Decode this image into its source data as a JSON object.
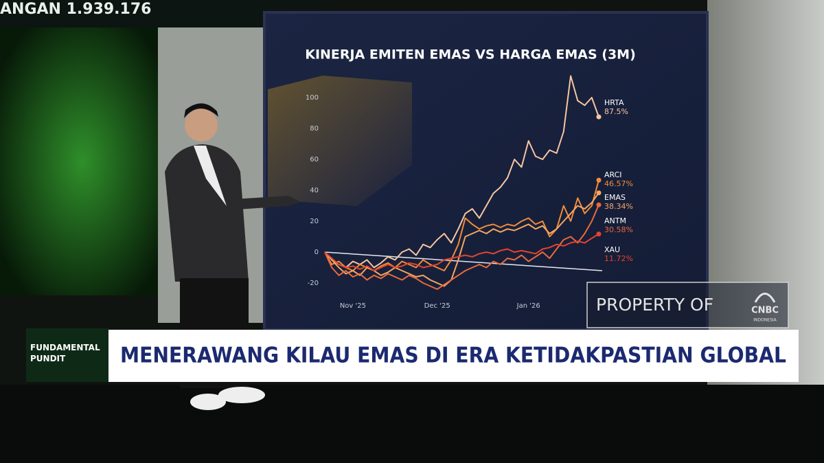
{
  "ticker": "ANGAN 1.939.176",
  "chart_data": {
    "type": "line",
    "title": "KINERJA EMITEN EMAS VS HARGA EMAS (3M)",
    "categories": [
      null,
      null,
      null,
      null,
      "Nov '25",
      null,
      null,
      null,
      null,
      null,
      null,
      null,
      null,
      null,
      null,
      null,
      "Dec '25",
      null,
      null,
      null,
      null,
      null,
      null,
      null,
      null,
      null,
      null,
      null,
      null,
      "Jan '26",
      null,
      null,
      null,
      null,
      null,
      null,
      null,
      null,
      null,
      null
    ],
    "ylim": [
      -25,
      115
    ],
    "yticks": [
      -20,
      0,
      20,
      40,
      60,
      80,
      100
    ],
    "series": [
      {
        "name": "HRTA",
        "color": "#f7c7a3",
        "values": [
          0,
          -5,
          -8,
          -10,
          -6,
          -8,
          -5,
          -10,
          -7,
          -3,
          -5,
          0,
          2,
          -2,
          5,
          3,
          8,
          12,
          6,
          15,
          25,
          28,
          22,
          30,
          38,
          42,
          48,
          60,
          55,
          72,
          62,
          60,
          66,
          64,
          78,
          114,
          98,
          95,
          100,
          87.5
        ],
        "value_labels": [
          null,
          null,
          null,
          null,
          null,
          null,
          null,
          null,
          null,
          null,
          null,
          null,
          null,
          null,
          null,
          null,
          null,
          null,
          null,
          null,
          null,
          null,
          null,
          null,
          null,
          null,
          null,
          null,
          null,
          null,
          null,
          null,
          null,
          null,
          null,
          null,
          null,
          null,
          null,
          "87.5%"
        ]
      },
      {
        "name": "ARCI",
        "color": "#f28c3a",
        "values": [
          0,
          -8,
          -6,
          -10,
          -12,
          -8,
          -10,
          -12,
          -9,
          -7,
          -10,
          -6,
          -8,
          -10,
          -5,
          -8,
          -10,
          -12,
          -5,
          5,
          22,
          18,
          15,
          17,
          18,
          16,
          18,
          17,
          20,
          22,
          18,
          20,
          10,
          15,
          30,
          20,
          35,
          25,
          30,
          46.57
        ],
        "value_labels": [
          null,
          null,
          null,
          null,
          null,
          null,
          null,
          null,
          null,
          null,
          null,
          null,
          null,
          null,
          null,
          null,
          null,
          null,
          null,
          null,
          null,
          null,
          null,
          null,
          null,
          null,
          null,
          null,
          null,
          null,
          null,
          null,
          null,
          null,
          null,
          null,
          null,
          null,
          null,
          "46.57%"
        ]
      },
      {
        "name": "EMAS",
        "color": "#f6a762",
        "values": [
          0,
          -5,
          -10,
          -14,
          -12,
          -15,
          -10,
          -12,
          -15,
          -13,
          -10,
          -12,
          -14,
          -16,
          -15,
          -18,
          -20,
          -22,
          -18,
          -5,
          10,
          12,
          14,
          12,
          15,
          13,
          15,
          14,
          16,
          18,
          15,
          17,
          12,
          15,
          20,
          25,
          30,
          28,
          32,
          38.34
        ],
        "value_labels": [
          null,
          null,
          null,
          null,
          null,
          null,
          null,
          null,
          null,
          null,
          null,
          null,
          null,
          null,
          null,
          null,
          null,
          null,
          null,
          null,
          null,
          null,
          null,
          null,
          null,
          null,
          null,
          null,
          null,
          null,
          null,
          null,
          null,
          null,
          null,
          null,
          null,
          null,
          null,
          "38.34%"
        ]
      },
      {
        "name": "ANTM",
        "color": "#ea6a3c",
        "values": [
          0,
          -10,
          -15,
          -12,
          -16,
          -14,
          -18,
          -15,
          -17,
          -14,
          -16,
          -18,
          -15,
          -17,
          -20,
          -22,
          -24,
          -21,
          -18,
          -15,
          -12,
          -10,
          -8,
          -10,
          -6,
          -8,
          -4,
          -5,
          -2,
          -6,
          -3,
          0,
          -4,
          2,
          8,
          10,
          6,
          12,
          20,
          30.58
        ],
        "value_labels": [
          null,
          null,
          null,
          null,
          null,
          null,
          null,
          null,
          null,
          null,
          null,
          null,
          null,
          null,
          null,
          null,
          null,
          null,
          null,
          null,
          null,
          null,
          null,
          null,
          null,
          null,
          null,
          null,
          null,
          null,
          null,
          null,
          null,
          null,
          null,
          null,
          null,
          null,
          null,
          "30.58%"
        ]
      },
      {
        "name": "XAU",
        "color": "#e5442c",
        "values": [
          0,
          -4,
          -8,
          -10,
          -9,
          -11,
          -9,
          -12,
          -10,
          -8,
          -10,
          -9,
          -7,
          -8,
          -10,
          -9,
          -8,
          -5,
          -4,
          -3,
          -2,
          -3,
          -1,
          0,
          -1,
          1,
          2,
          0,
          1,
          0,
          -1,
          2,
          3,
          5,
          4,
          6,
          7,
          6,
          9,
          11.72
        ],
        "value_labels": [
          null,
          null,
          null,
          null,
          null,
          null,
          null,
          null,
          null,
          null,
          null,
          null,
          null,
          null,
          null,
          null,
          null,
          null,
          null,
          null,
          null,
          null,
          null,
          null,
          null,
          null,
          null,
          null,
          null,
          null,
          null,
          null,
          null,
          null,
          null,
          null,
          null,
          null,
          null,
          "11.72%"
        ]
      }
    ]
  },
  "watermark": {
    "text": "PROPERTY OF",
    "brand": "CNBC",
    "region": "INDONESIA"
  },
  "lower_third": {
    "tag": "FUNDAMENTAL PUNDIT",
    "headline": "MENERAWANG KILAU EMAS DI ERA KETIDAKPASTIAN GLOBAL"
  }
}
